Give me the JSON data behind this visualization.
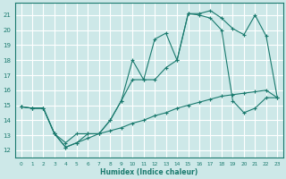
{
  "xlabel": "Humidex (Indice chaleur)",
  "background_color": "#cde8e8",
  "grid_color": "#ffffff",
  "line_color": "#1a7a6e",
  "xlim": [
    -0.5,
    23.5
  ],
  "ylim": [
    11.5,
    21.8
  ],
  "xticks": [
    0,
    1,
    2,
    3,
    4,
    5,
    6,
    7,
    8,
    9,
    10,
    11,
    12,
    13,
    14,
    15,
    16,
    17,
    18,
    19,
    20,
    21,
    22,
    23
  ],
  "yticks": [
    12,
    13,
    14,
    15,
    16,
    17,
    18,
    19,
    20,
    21
  ],
  "line1_x": [
    0,
    1,
    2,
    3,
    4,
    5,
    6,
    7,
    8,
    9,
    10,
    11,
    12,
    13,
    14,
    15,
    16,
    17,
    18,
    19,
    20,
    21,
    22,
    23
  ],
  "line1_y": [
    14.9,
    14.8,
    14.8,
    13.1,
    12.5,
    13.1,
    13.1,
    13.1,
    14.0,
    15.3,
    18.0,
    16.7,
    19.4,
    19.8,
    18.0,
    21.1,
    21.1,
    21.3,
    20.8,
    20.1,
    19.7,
    21.0,
    19.6,
    15.5
  ],
  "line2_x": [
    0,
    1,
    2,
    3,
    4,
    5,
    6,
    7,
    8,
    9,
    10,
    11,
    12,
    13,
    14,
    15,
    16,
    17,
    18,
    19,
    20,
    21,
    22,
    23
  ],
  "line2_y": [
    14.9,
    14.8,
    14.8,
    13.1,
    12.2,
    12.5,
    13.1,
    13.1,
    14.0,
    15.3,
    16.7,
    16.7,
    16.7,
    17.5,
    18.0,
    21.1,
    21.0,
    20.8,
    20.0,
    15.3,
    14.5,
    14.8,
    15.5,
    15.5
  ],
  "line3_x": [
    0,
    1,
    2,
    3,
    4,
    5,
    6,
    7,
    8,
    9,
    10,
    11,
    12,
    13,
    14,
    15,
    16,
    17,
    18,
    19,
    20,
    21,
    22,
    23
  ],
  "line3_y": [
    14.9,
    14.8,
    14.8,
    13.1,
    12.2,
    12.5,
    12.8,
    13.1,
    13.3,
    13.5,
    13.8,
    14.0,
    14.3,
    14.5,
    14.8,
    15.0,
    15.2,
    15.4,
    15.6,
    15.7,
    15.8,
    15.9,
    16.0,
    15.5
  ]
}
